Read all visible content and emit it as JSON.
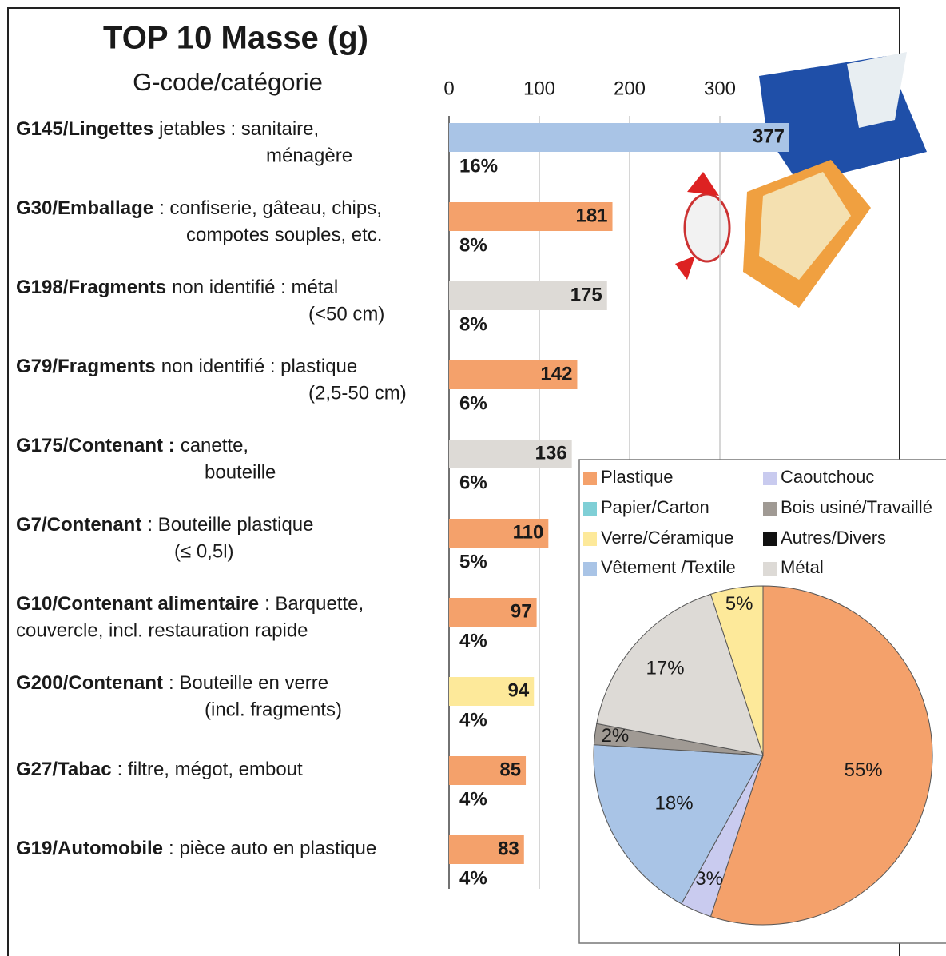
{
  "chart_data": [
    {
      "type": "bar",
      "orientation": "horizontal",
      "title": "TOP 10 Masse (g)",
      "subtitle": "G-code/catégorie",
      "categories": [
        {
          "code": "G145/Lingettes",
          "text": "jetables : sanitaire,",
          "text2": "ménagère"
        },
        {
          "code": "G30/Emballage",
          "text": ": confiserie, gâteau, chips,",
          "text2": "compotes souples, etc."
        },
        {
          "code": "G198/Fragments",
          "text": "non identifié : métal",
          "text2": "(<50 cm)"
        },
        {
          "code": "G79/Fragments",
          "text": "non identifié : plastique",
          "text2": "(2,5-50 cm)"
        },
        {
          "code": "G175/Contenant :",
          "text": "canette,",
          "text2": "bouteille"
        },
        {
          "code": "G7/Contenant",
          "text": ": Bouteille plastique",
          "text2": "(≤ 0,5l)"
        },
        {
          "code": "G10/Contenant alimentaire",
          "text": ": Barquette,",
          "text2": "couvercle, incl. restauration rapide"
        },
        {
          "code": "G200/Contenant",
          "text": ": Bouteille en verre",
          "text2": "(incl. fragments)"
        },
        {
          "code": "G27/Tabac",
          "text": ": filtre, mégot, embout"
        },
        {
          "code": "G19/Automobile",
          "text": ": pièce auto en plastique"
        }
      ],
      "values": [
        377,
        181,
        175,
        142,
        136,
        110,
        97,
        94,
        85,
        83
      ],
      "shares": [
        "16%",
        "8%",
        "8%",
        "6%",
        "6%",
        "5%",
        "4%",
        "4%",
        "4%",
        "4%"
      ],
      "colors": [
        "#a9c4e6",
        "#f4a16b",
        "#dddad6",
        "#f4a16b",
        "#dddad6",
        "#f4a16b",
        "#f4a16b",
        "#fde99a",
        "#f4a16b",
        "#f4a16b"
      ],
      "xlim": [
        0,
        400
      ],
      "xticks": [
        0,
        100,
        200,
        300
      ],
      "grid": true
    },
    {
      "type": "pie",
      "series": [
        {
          "name": "Plastique",
          "color": "#f4a16b",
          "value": 55,
          "value_label": "55%"
        },
        {
          "name": "Papier/Carton",
          "color": "#7fcfd6",
          "value": 0
        },
        {
          "name": "Caoutchouc",
          "color": "#c9cbef",
          "value": 3,
          "value_label": "3%"
        },
        {
          "name": "Vêtement /Textile",
          "color": "#a9c4e6",
          "value": 18,
          "value_label": "18%"
        },
        {
          "name": "Bois usiné/Travaillé",
          "color": "#a09a94",
          "value": 2,
          "value_label": "2%"
        },
        {
          "name": "Autres/Divers",
          "color": "#111111",
          "value": 0
        },
        {
          "name": "Métal",
          "color": "#dddad6",
          "value": 17,
          "value_label": "17%"
        },
        {
          "name": "Verre/Céramique",
          "color": "#fde99a",
          "value": 5,
          "value_label": "5%"
        }
      ]
    }
  ]
}
